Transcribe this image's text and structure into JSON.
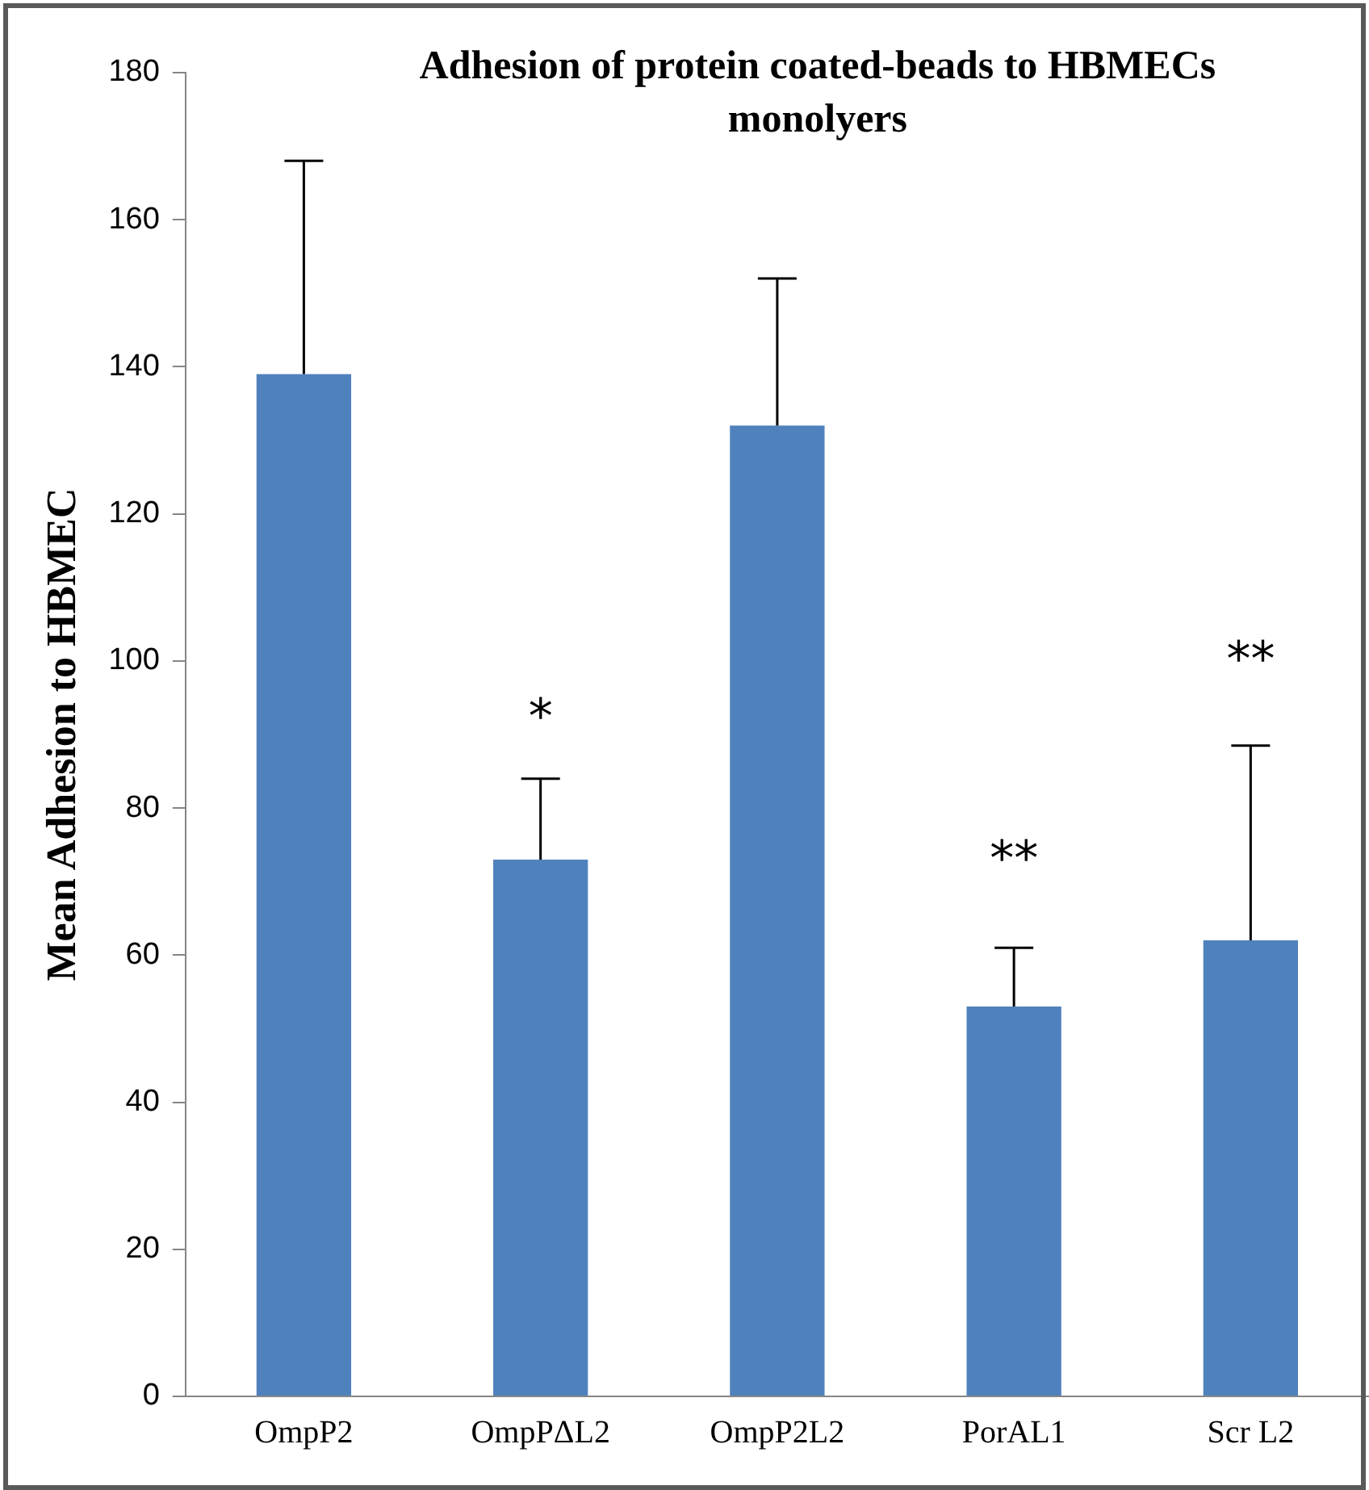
{
  "chart_data": {
    "type": "bar",
    "title": "Adhesion of protein coated-beads to HBMECs monolyers",
    "ylabel": "Mean Adhesion to HBMEC",
    "categories": [
      "OmpP2",
      "OmpPΔL2",
      "OmpP2L2",
      "PorAL1",
      "Scr L2"
    ],
    "values": [
      139,
      73,
      132,
      53,
      62
    ],
    "color": "#4f81bd",
    "errors": [
      [
        139,
        168
      ],
      [
        73,
        84
      ],
      [
        132,
        152
      ],
      [
        53,
        61
      ],
      [
        62,
        88.5
      ]
    ],
    "annotations": [
      "*",
      "**",
      "**"
    ],
    "ylim": [
      0,
      180
    ],
    "yticks": [
      0,
      20,
      40,
      60,
      80,
      100,
      120,
      140,
      160,
      180
    ]
  }
}
